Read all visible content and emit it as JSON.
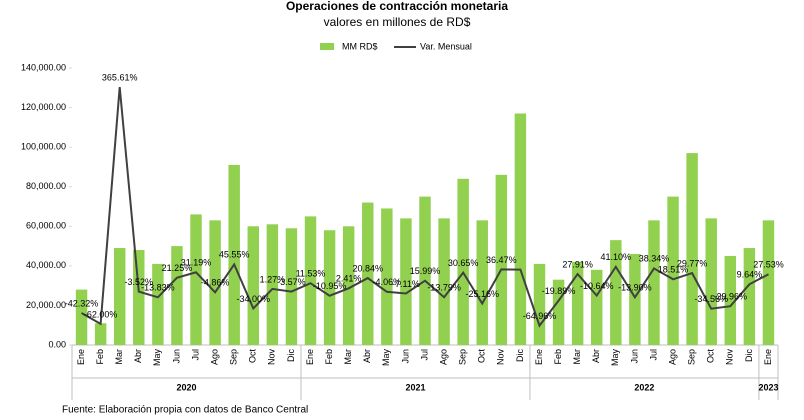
{
  "chart_data": {
    "type": "bar_line",
    "title": "Operaciones de contracción monetaria",
    "subtitle": "valores en millones de RD$",
    "source": "Fuente: Elaboración propia con datos de Banco Central",
    "categories": [
      "Ene",
      "Feb",
      "Mar",
      "Abr",
      "May",
      "Jun",
      "Jul",
      "Ago",
      "Sep",
      "Oct",
      "Nov",
      "Dic",
      "Ene",
      "Feb",
      "Mar",
      "Abr",
      "May",
      "Jun",
      "Jul",
      "Ago",
      "Sep",
      "Oct",
      "Nov",
      "Dic",
      "Ene",
      "Feb",
      "Mar",
      "Abr",
      "May",
      "Jun",
      "Jul",
      "Ago",
      "Sep",
      "Oct",
      "Nov",
      "Dic",
      "Ene"
    ],
    "year_groups": [
      {
        "name": "2020",
        "start": 0,
        "end": 11
      },
      {
        "name": "2021",
        "start": 12,
        "end": 23
      },
      {
        "name": "2022",
        "start": 24,
        "end": 35
      },
      {
        "name": "2023",
        "start": 36,
        "end": 36
      }
    ],
    "series": [
      {
        "name": "MM RD$",
        "type": "bar",
        "color": "#92d050",
        "values": [
          28000,
          11000,
          49000,
          48000,
          41000,
          50000,
          66000,
          63000,
          91000,
          60000,
          61000,
          59000,
          65000,
          58000,
          60000,
          72000,
          69000,
          64000,
          75000,
          64000,
          84000,
          63000,
          86000,
          117000,
          41000,
          33000,
          42000,
          38000,
          53000,
          46000,
          63000,
          75000,
          97000,
          64000,
          45000,
          49000,
          63000
        ]
      },
      {
        "name": "Var. Mensual",
        "type": "line",
        "axis": "y2",
        "color": "#404040",
        "values": [
          -42.32,
          -62.0,
          365.61,
          -3.52,
          -13.83,
          21.25,
          31.19,
          -4.86,
          45.55,
          -34.0,
          1.27,
          -3.57,
          11.53,
          -10.95,
          2.41,
          20.84,
          -4.06,
          -7.11,
          15.99,
          -13.79,
          30.65,
          -25.16,
          36.47,
          36.05,
          -64.96,
          -19.89,
          27.91,
          -10.64,
          41.1,
          -13.9,
          38.34,
          18.51,
          29.77,
          -34.56,
          -29.96,
          9.64,
          27.53
        ],
        "value_labels": [
          "-42.32%",
          "-62.00%",
          "365.61%",
          "-3.52%",
          "-13.83%",
          "21.25%",
          "31.19%",
          "-4.86%",
          "45.55%",
          "-34.00%",
          "1.27%",
          "-3.57%",
          "11.53%",
          "-10.95%",
          "2.41%",
          "20.84%",
          "-4.06%",
          "-7.11%",
          "15.99%",
          "-13.79%",
          "30.65%",
          "-25.16%",
          "36.47%",
          null,
          "-64.96%",
          "-19.89%",
          "27.91%",
          "-10.64%",
          "41.10%",
          "-13.90%",
          "38.34%",
          "18.51%",
          "29.77%",
          "-34.56%",
          "-29.96%",
          "9.64%",
          "27.53%"
        ]
      }
    ],
    "ylim": [
      0,
      140000
    ],
    "yticks": [
      {
        "value": 0,
        "label": "0.00"
      },
      {
        "value": 20000,
        "label": "20,000.00"
      },
      {
        "value": 40000,
        "label": "40,000.00"
      },
      {
        "value": 60000,
        "label": "60,000.00"
      },
      {
        "value": 80000,
        "label": "80,000.00"
      },
      {
        "value": 100000,
        "label": "100,000.00"
      },
      {
        "value": 120000,
        "label": "120,000.00"
      },
      {
        "value": 140000,
        "label": "140,000.00"
      }
    ],
    "y2lim": [
      -100,
      400
    ],
    "grid": false,
    "legend": "top"
  }
}
